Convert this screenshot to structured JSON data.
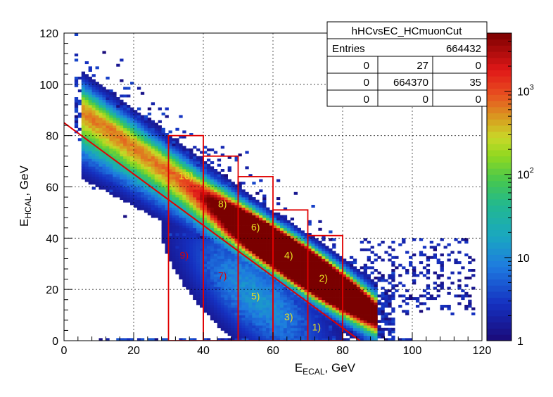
{
  "chart_data": {
    "type": "heatmap",
    "title": "",
    "xlabel": {
      "main": "E",
      "sub": "ECAL",
      "suffix": ", GeV"
    },
    "ylabel": {
      "main": "E",
      "sub": "HCAL",
      "suffix": ", GeV"
    },
    "xlim": [
      0,
      120
    ],
    "ylim": [
      0,
      120
    ],
    "x_ticks": [
      "0",
      "20",
      "40",
      "60",
      "80",
      "100",
      "120"
    ],
    "y_ticks": [
      "0",
      "20",
      "40",
      "60",
      "80",
      "100",
      "120"
    ],
    "grid": true,
    "colorbar": {
      "scale": "log",
      "range": [
        1,
        5000
      ],
      "tick_labels": [
        {
          "value": 1,
          "base": "1",
          "exp": ""
        },
        {
          "value": 10,
          "base": "10",
          "exp": ""
        },
        {
          "value": 100,
          "base": "10",
          "exp": "2"
        },
        {
          "value": 1000,
          "base": "10",
          "exp": "3"
        }
      ]
    },
    "density_model": {
      "band": "E_HCAL + 0.95*E_ECAL around 95",
      "peak_at": {
        "x": 68,
        "y": 30
      }
    },
    "cut_line": {
      "from": {
        "x": 0,
        "y": 85
      },
      "to": {
        "x": 85,
        "y": 0
      },
      "color": "#e00000"
    },
    "regions": [
      {
        "label": "1)",
        "x_range": [
          70,
          80
        ],
        "y_max": 41,
        "label_pos": {
          "x": 72.5,
          "y": 4
        },
        "label_color": "#e8e020"
      },
      {
        "label": "2)",
        "x_range": [
          70,
          80
        ],
        "y_max": 41,
        "label_pos": {
          "x": 74.5,
          "y": 23
        },
        "label_color": "#e8e020"
      },
      {
        "label": "3)",
        "x_range": [
          60,
          70
        ],
        "y_max": 51,
        "label_pos": {
          "x": 64.5,
          "y": 8
        },
        "label_color": "#e8e020"
      },
      {
        "label": "4)",
        "x_range": [
          60,
          70
        ],
        "y_max": 51,
        "label_pos": {
          "x": 64.5,
          "y": 32
        },
        "label_color": "#e8e020"
      },
      {
        "label": "5)",
        "x_range": [
          50,
          60
        ],
        "y_max": 64,
        "label_pos": {
          "x": 55,
          "y": 16
        },
        "label_color": "#e8e020"
      },
      {
        "label": "6)",
        "x_range": [
          50,
          60
        ],
        "y_max": 64,
        "label_pos": {
          "x": 55,
          "y": 43
        },
        "label_color": "#e8e020"
      },
      {
        "label": "7)",
        "x_range": [
          40,
          50
        ],
        "y_max": 72,
        "label_pos": {
          "x": 45.5,
          "y": 24
        },
        "label_color": "#e00000"
      },
      {
        "label": "8)",
        "x_range": [
          40,
          50
        ],
        "y_max": 72,
        "label_pos": {
          "x": 45.5,
          "y": 52
        },
        "label_color": "#e8e020"
      },
      {
        "label": "9)",
        "x_range": [
          30,
          40
        ],
        "y_max": 80,
        "label_pos": {
          "x": 34.5,
          "y": 32
        },
        "label_color": "#e00000"
      },
      {
        "label": "10)",
        "x_range": [
          30,
          40
        ],
        "y_max": 80,
        "label_pos": {
          "x": 35,
          "y": 63
        },
        "label_color": "#e8e020"
      }
    ],
    "region_color": "#e00000"
  },
  "stats_box": {
    "title": "hHCvsEC_HCmuonCut",
    "entries_label": "Entries",
    "entries_value": "664432",
    "grid": [
      [
        "0",
        "27",
        "0"
      ],
      [
        "0",
        "664370",
        "35"
      ],
      [
        "0",
        "0",
        "0"
      ]
    ]
  }
}
